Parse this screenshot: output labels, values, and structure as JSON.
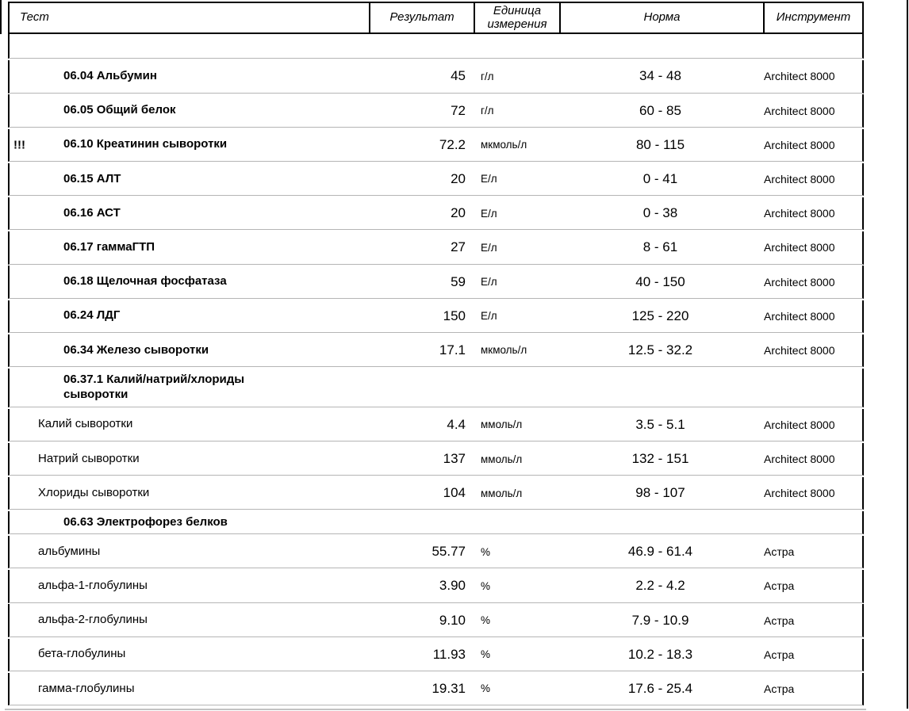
{
  "columns": {
    "test": "Тест",
    "result": "Результат",
    "unit": "Единица измерения",
    "norm": "Норма",
    "instrument": "Инструмент"
  },
  "rows": [
    {
      "kind": "spacer"
    },
    {
      "kind": "test",
      "style": "numbered",
      "flag": "",
      "name": "06.04 Альбумин",
      "result": "45",
      "unit": "г/л",
      "norm": "34 - 48",
      "instrument": "Architect 8000"
    },
    {
      "kind": "test",
      "style": "numbered",
      "flag": "",
      "name": "06.05 Общий белок",
      "result": "72",
      "unit": "г/л",
      "norm": "60 - 85",
      "instrument": "Architect 8000"
    },
    {
      "kind": "test",
      "style": "numbered",
      "flag": "!!!",
      "name": "06.10 Креатинин сыворотки",
      "result": "72.2",
      "unit": "мкмоль/л",
      "norm": "80 - 115",
      "instrument": "Architect 8000"
    },
    {
      "kind": "test",
      "style": "numbered",
      "flag": "",
      "name": "06.15 АЛТ",
      "result": "20",
      "unit": "Е/л",
      "norm": "0 - 41",
      "instrument": "Architect 8000"
    },
    {
      "kind": "test",
      "style": "numbered",
      "flag": "",
      "name": "06.16 АСТ",
      "result": "20",
      "unit": "Е/л",
      "norm": "0 - 38",
      "instrument": "Architect 8000"
    },
    {
      "kind": "test",
      "style": "numbered",
      "flag": "",
      "name": "06.17 гаммаГТП",
      "result": "27",
      "unit": "Е/л",
      "norm": "8 - 61",
      "instrument": "Architect 8000"
    },
    {
      "kind": "test",
      "style": "numbered",
      "flag": "",
      "name": "06.18 Щелочная фосфатаза",
      "result": "59",
      "unit": "Е/л",
      "norm": "40 - 150",
      "instrument": "Architect 8000"
    },
    {
      "kind": "test",
      "style": "numbered",
      "flag": "",
      "name": "06.24 ЛДГ",
      "result": "150",
      "unit": "Е/л",
      "norm": "125 - 220",
      "instrument": "Architect 8000"
    },
    {
      "kind": "test",
      "style": "numbered",
      "flag": "",
      "name": "06.34 Железо сыворотки",
      "result": "17.1",
      "unit": "мкмоль/л",
      "norm": "12.5 - 32.2",
      "instrument": "Architect 8000"
    },
    {
      "kind": "group",
      "style": "numbered",
      "height": "tall",
      "name": "06.37.1 Калий/натрий/хлориды сыворотки"
    },
    {
      "kind": "test",
      "style": "plain",
      "flag": "",
      "name": "Калий сыворотки",
      "result": "4.4",
      "unit": "ммоль/л",
      "norm": "3.5 - 5.1",
      "instrument": "Architect 8000"
    },
    {
      "kind": "test",
      "style": "plain",
      "flag": "",
      "name": "Натрий сыворотки",
      "result": "137",
      "unit": "ммоль/л",
      "norm": "132 - 151",
      "instrument": "Architect 8000"
    },
    {
      "kind": "test",
      "style": "plain",
      "flag": "",
      "name": "Хлориды сыворотки",
      "result": "104",
      "unit": "ммоль/л",
      "norm": "98 - 107",
      "instrument": "Architect 8000"
    },
    {
      "kind": "group",
      "style": "numbered",
      "height": "short",
      "name": "06.63 Электрофорез белков"
    },
    {
      "kind": "test",
      "style": "plain",
      "flag": "",
      "name": "альбумины",
      "result": "55.77",
      "unit": "%",
      "norm": "46.9 - 61.4",
      "instrument": "Астра"
    },
    {
      "kind": "test",
      "style": "plain",
      "flag": "",
      "name": "альфа-1-глобулины",
      "result": "3.90",
      "unit": "%",
      "norm": "2.2 - 4.2",
      "instrument": "Астра"
    },
    {
      "kind": "test",
      "style": "plain",
      "flag": "",
      "name": "альфа-2-глобулины",
      "result": "9.10",
      "unit": "%",
      "norm": "7.9 - 10.9",
      "instrument": "Астра"
    },
    {
      "kind": "test",
      "style": "plain",
      "flag": "",
      "name": "бета-глобулины",
      "result": "11.93",
      "unit": "%",
      "norm": "10.2 - 18.3",
      "instrument": "Астра"
    },
    {
      "kind": "test",
      "style": "plain",
      "flag": "",
      "name": "гамма-глобулины",
      "result": "19.31",
      "unit": "%",
      "norm": "17.6 - 25.4",
      "instrument": "Астра"
    }
  ],
  "colors": {
    "border_strong": "#000000",
    "border_light": "#b5b5b5",
    "text": "#000000",
    "background": "#ffffff"
  }
}
